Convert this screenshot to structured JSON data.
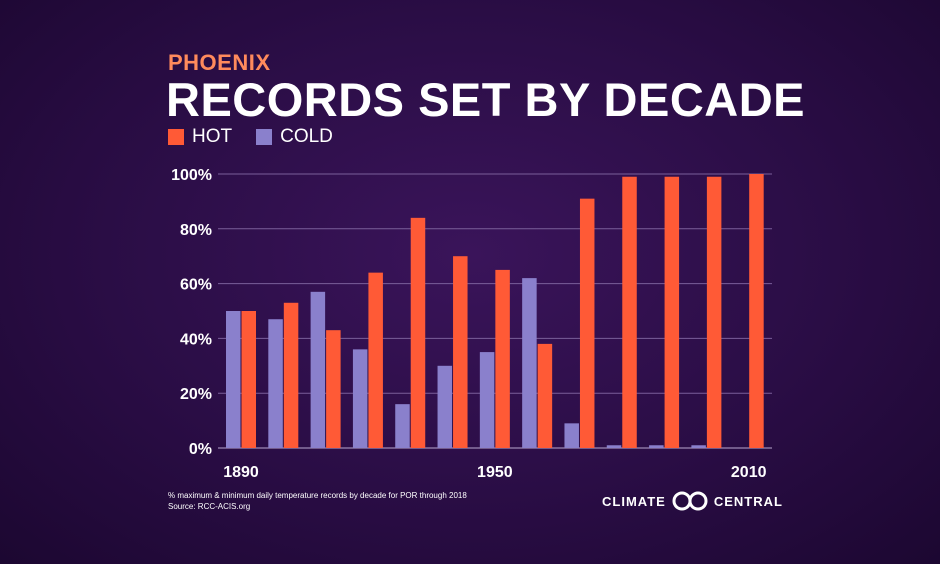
{
  "header": {
    "subtitle": "PHOENIX",
    "title": "RECORDS SET BY DECADE"
  },
  "footer": {
    "note": "% maximum & minimum daily temperature records by decade for POR through 2018",
    "source": "Source: RCC-ACIS.org",
    "brand_left": "CLIMATE",
    "brand_right": "CENTRAL"
  },
  "colors": {
    "hot": "#ff5a36",
    "cold": "#8a80cc",
    "grid": "#7a5f9a",
    "text": "#ffffff"
  },
  "chart_data": {
    "type": "bar",
    "title": "RECORDS SET BY DECADE",
    "subtitle": "PHOENIX",
    "categories": [
      "1890",
      "1900",
      "1910",
      "1920",
      "1930",
      "1940",
      "1950",
      "1960",
      "1970",
      "1980",
      "1990",
      "2000",
      "2010"
    ],
    "x_tick_labels": [
      "1890",
      "1950",
      "2010"
    ],
    "series": [
      {
        "name": "HOT",
        "values": [
          50,
          53,
          43,
          64,
          84,
          70,
          65,
          38,
          91,
          99,
          99,
          99,
          100
        ]
      },
      {
        "name": "COLD",
        "values": [
          50,
          47,
          57,
          36,
          16,
          30,
          35,
          62,
          9,
          1,
          1,
          1,
          0
        ]
      }
    ],
    "ylim": [
      0,
      100
    ],
    "y_ticks": [
      "0%",
      "20%",
      "40%",
      "60%",
      "80%",
      "100%"
    ],
    "grid": true,
    "legend": "top-left"
  }
}
